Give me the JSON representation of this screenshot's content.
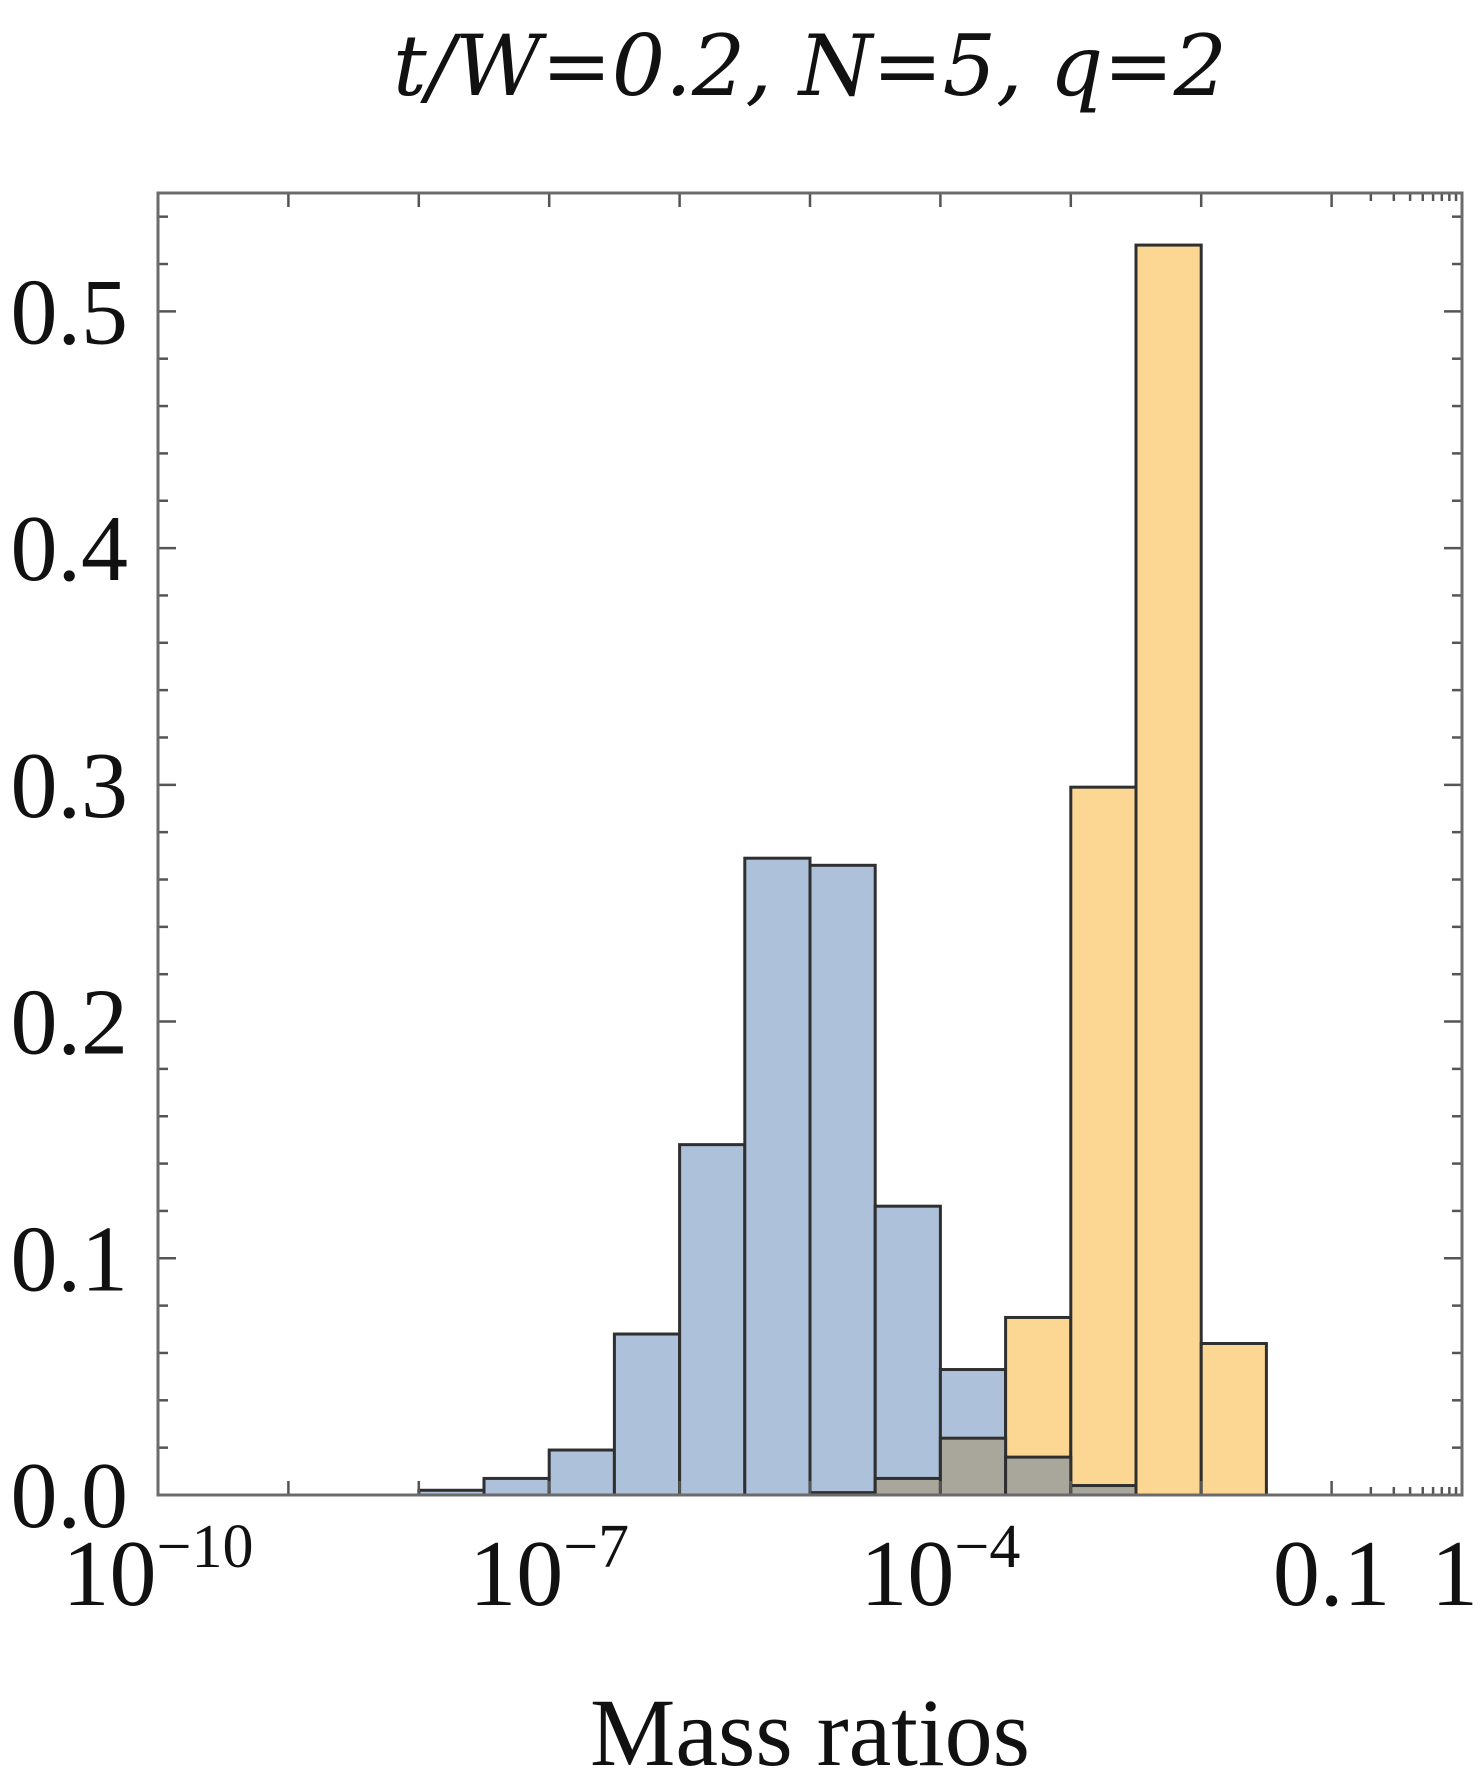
{
  "chart_data": {
    "type": "bar",
    "title": "t/W=0.2, N=5, q=2",
    "xlabel": "Mass ratios",
    "ylabel": "",
    "x_scale": "log",
    "xlim": [
      1e-10,
      1
    ],
    "ylim": [
      0,
      0.55
    ],
    "x_tick_labels": [
      {
        "label": "10",
        "exponent": "−10",
        "value": 1e-10
      },
      {
        "label": "10",
        "exponent": "−7",
        "value": 1e-07
      },
      {
        "label": "10",
        "exponent": "−4",
        "value": 0.0001
      },
      {
        "label": "0.1",
        "exponent": "",
        "value": 0.1
      },
      {
        "label": "1",
        "exponent": "",
        "value": 1
      }
    ],
    "y_tick_labels": [
      "0.0",
      "0.1",
      "0.2",
      "0.3",
      "0.4",
      "0.5"
    ],
    "y_tick_values": [
      0,
      0.1,
      0.2,
      0.3,
      0.4,
      0.5
    ],
    "bin_width_decades": 0.5,
    "overlap_color": "#a9a69c",
    "series": [
      {
        "color": "#adc1db",
        "bins": [
          {
            "from_log10": -8.0,
            "value": 0.002
          },
          {
            "from_log10": -7.5,
            "value": 0.007
          },
          {
            "from_log10": -7.0,
            "value": 0.019
          },
          {
            "from_log10": -6.5,
            "value": 0.068
          },
          {
            "from_log10": -6.0,
            "value": 0.148
          },
          {
            "from_log10": -5.5,
            "value": 0.269
          },
          {
            "from_log10": -5.0,
            "value": 0.266
          },
          {
            "from_log10": -4.5,
            "value": 0.122
          },
          {
            "from_log10": -4.0,
            "value": 0.053
          },
          {
            "from_log10": -3.5,
            "value": 0.016
          },
          {
            "from_log10": -3.0,
            "value": 0.004
          }
        ]
      },
      {
        "color": "#fbd793",
        "bins": [
          {
            "from_log10": -5.0,
            "value": 0.001
          },
          {
            "from_log10": -4.5,
            "value": 0.007
          },
          {
            "from_log10": -4.0,
            "value": 0.024
          },
          {
            "from_log10": -3.5,
            "value": 0.075
          },
          {
            "from_log10": -3.0,
            "value": 0.299
          },
          {
            "from_log10": -2.5,
            "value": 0.528
          },
          {
            "from_log10": -2.0,
            "value": 0.064
          }
        ]
      }
    ],
    "grid": false,
    "legend": "none"
  }
}
